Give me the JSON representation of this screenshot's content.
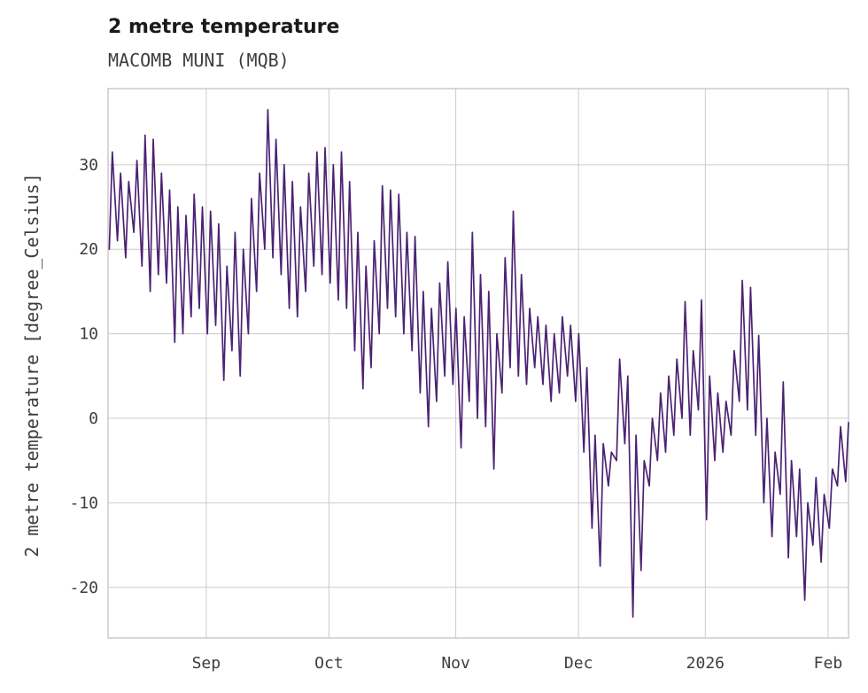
{
  "header": {
    "title": "2 metre temperature",
    "subtitle": "MACOMB MUNI (MQB)"
  },
  "chart_data": {
    "type": "line",
    "title": "2 metre temperature",
    "subtitle": "MACOMB MUNI (MQB)",
    "xlabel": "",
    "ylabel": "2 metre temperature [degree_Celsius]",
    "grid": true,
    "legend": "none",
    "line_color": "#4c2273",
    "grid_color": "#cccccc",
    "xlim": [
      0,
      181
    ],
    "ylim": [
      -26,
      39
    ],
    "x_ticks": [
      {
        "pos": 24,
        "label": "Sep"
      },
      {
        "pos": 54,
        "label": "Oct"
      },
      {
        "pos": 85,
        "label": "Nov"
      },
      {
        "pos": 115,
        "label": "Dec"
      },
      {
        "pos": 146,
        "label": "2026"
      },
      {
        "pos": 176,
        "label": "Feb"
      }
    ],
    "y_ticks": [
      -20,
      -10,
      0,
      10,
      20,
      30
    ],
    "series": [
      {
        "name": "2 metre temperature",
        "x_unit_note": "days from left edge of plot (approx. mid-August to early February)",
        "daily_min_max": [
          [
            0,
            20,
            31.5
          ],
          [
            2,
            21,
            29
          ],
          [
            4,
            19,
            28
          ],
          [
            6,
            22,
            30.5
          ],
          [
            8,
            18,
            33.5
          ],
          [
            10,
            15,
            33
          ],
          [
            12,
            17,
            29
          ],
          [
            14,
            16,
            27
          ],
          [
            16,
            9,
            25
          ],
          [
            18,
            10,
            24
          ],
          [
            20,
            12,
            26.5
          ],
          [
            22,
            13,
            25
          ],
          [
            24,
            10,
            24.5
          ],
          [
            26,
            11,
            23
          ],
          [
            28,
            4.5,
            18
          ],
          [
            30,
            8,
            22
          ],
          [
            32,
            5,
            20
          ],
          [
            34,
            10,
            26
          ],
          [
            36,
            15,
            29
          ],
          [
            38,
            20,
            36.5
          ],
          [
            40,
            19,
            33
          ],
          [
            42,
            17,
            30
          ],
          [
            44,
            13,
            28
          ],
          [
            46,
            12,
            25
          ],
          [
            48,
            15,
            29
          ],
          [
            50,
            18,
            31.5
          ],
          [
            52,
            17,
            32
          ],
          [
            54,
            16,
            30
          ],
          [
            56,
            14,
            31.5
          ],
          [
            58,
            13,
            28
          ],
          [
            60,
            8,
            22
          ],
          [
            62,
            3.5,
            18
          ],
          [
            64,
            6,
            21
          ],
          [
            66,
            10,
            27.5
          ],
          [
            68,
            13,
            27
          ],
          [
            70,
            12,
            26.5
          ],
          [
            72,
            10,
            22
          ],
          [
            74,
            8,
            21.5
          ],
          [
            76,
            3,
            15
          ],
          [
            78,
            -1,
            13
          ],
          [
            80,
            2,
            16
          ],
          [
            82,
            5,
            18.5
          ],
          [
            84,
            4,
            13
          ],
          [
            86,
            -3.5,
            12
          ],
          [
            88,
            2,
            22
          ],
          [
            90,
            0,
            17
          ],
          [
            92,
            -1,
            15
          ],
          [
            94,
            -6,
            10
          ],
          [
            96,
            3,
            19
          ],
          [
            98,
            6,
            24.5
          ],
          [
            100,
            5,
            17
          ],
          [
            102,
            4,
            13
          ],
          [
            104,
            6,
            12
          ],
          [
            106,
            4,
            11
          ],
          [
            108,
            2,
            10
          ],
          [
            110,
            3,
            12
          ],
          [
            112,
            5,
            11
          ],
          [
            114,
            2,
            10
          ],
          [
            116,
            -4,
            6
          ],
          [
            118,
            -13,
            -2
          ],
          [
            120,
            -17.5,
            -3
          ],
          [
            122,
            -8,
            -4
          ],
          [
            124,
            -5,
            7
          ],
          [
            126,
            -3,
            5
          ],
          [
            128,
            -23.5,
            -2
          ],
          [
            130,
            -18,
            -5
          ],
          [
            132,
            -8,
            0
          ],
          [
            134,
            -5,
            3
          ],
          [
            136,
            -4,
            5
          ],
          [
            138,
            -2,
            7
          ],
          [
            140,
            0,
            13.8
          ],
          [
            142,
            -2,
            8
          ],
          [
            144,
            1,
            14
          ],
          [
            146,
            -12,
            5
          ],
          [
            148,
            -5,
            3
          ],
          [
            150,
            -4,
            2
          ],
          [
            152,
            -2,
            8
          ],
          [
            154,
            2,
            16.3
          ],
          [
            156,
            1,
            15.5
          ],
          [
            158,
            -2,
            9.8
          ],
          [
            160,
            -10,
            0
          ],
          [
            162,
            -14,
            -4
          ],
          [
            164,
            -9,
            4.3
          ],
          [
            166,
            -16.5,
            -5
          ],
          [
            168,
            -14,
            -6
          ],
          [
            170,
            -21.5,
            -10
          ],
          [
            172,
            -15,
            -7
          ],
          [
            174,
            -17,
            -9
          ],
          [
            176,
            -13,
            -6
          ],
          [
            178,
            -8,
            -1
          ],
          [
            180,
            -7.5,
            -0.5
          ]
        ]
      }
    ]
  }
}
